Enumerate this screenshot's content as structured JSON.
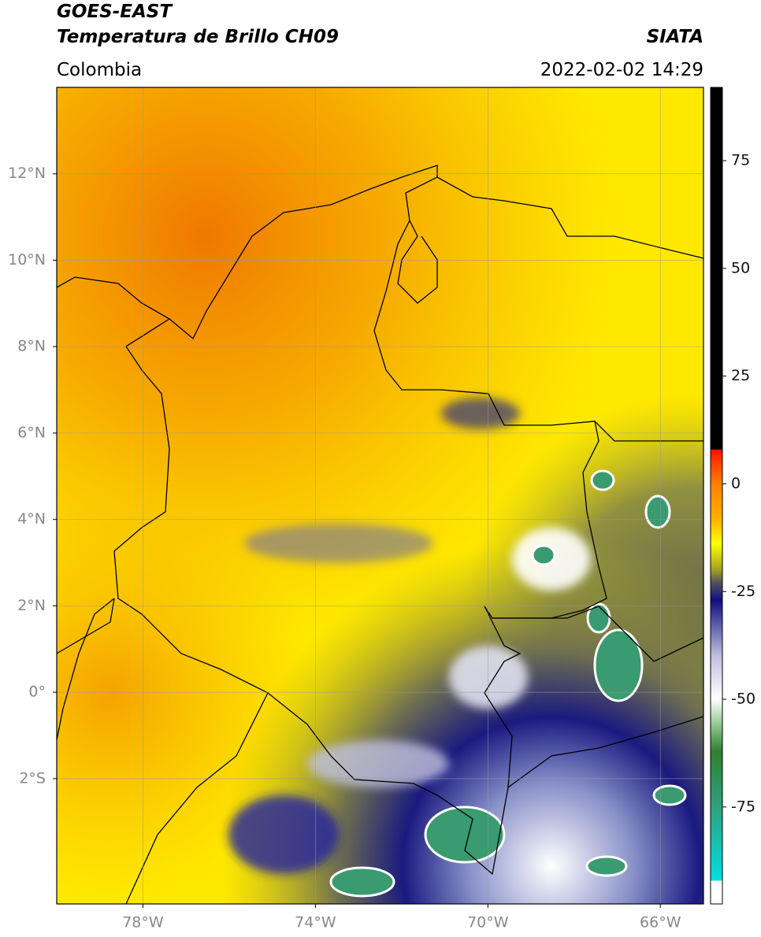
{
  "header": {
    "line1": "GOES-EAST",
    "title": "Temperatura de Brillo CH09",
    "region": "Colombia",
    "source": "SIATA",
    "datetime": "2022-02-02 14:29"
  },
  "map": {
    "xlim": [
      -80,
      -65
    ],
    "ylim": [
      -4.9,
      14
    ],
    "xticks": [
      {
        "value": -78,
        "label": "78°W"
      },
      {
        "value": -74,
        "label": "74°W"
      },
      {
        "value": -70,
        "label": "70°W"
      },
      {
        "value": -66,
        "label": "66°W"
      }
    ],
    "yticks": [
      {
        "value": 12,
        "label": "12°N"
      },
      {
        "value": 10,
        "label": "10°N"
      },
      {
        "value": 8,
        "label": "8°N"
      },
      {
        "value": 6,
        "label": "6°N"
      },
      {
        "value": 4,
        "label": "4°N"
      },
      {
        "value": 2,
        "label": "2°N"
      },
      {
        "value": 0,
        "label": "0°"
      },
      {
        "value": -2,
        "label": "2°S"
      }
    ],
    "grid": true
  },
  "colorbar": {
    "clim": [
      -97.5,
      92
    ],
    "ticks": [
      75,
      50,
      25,
      0,
      -25,
      -50,
      -75
    ]
  }
}
